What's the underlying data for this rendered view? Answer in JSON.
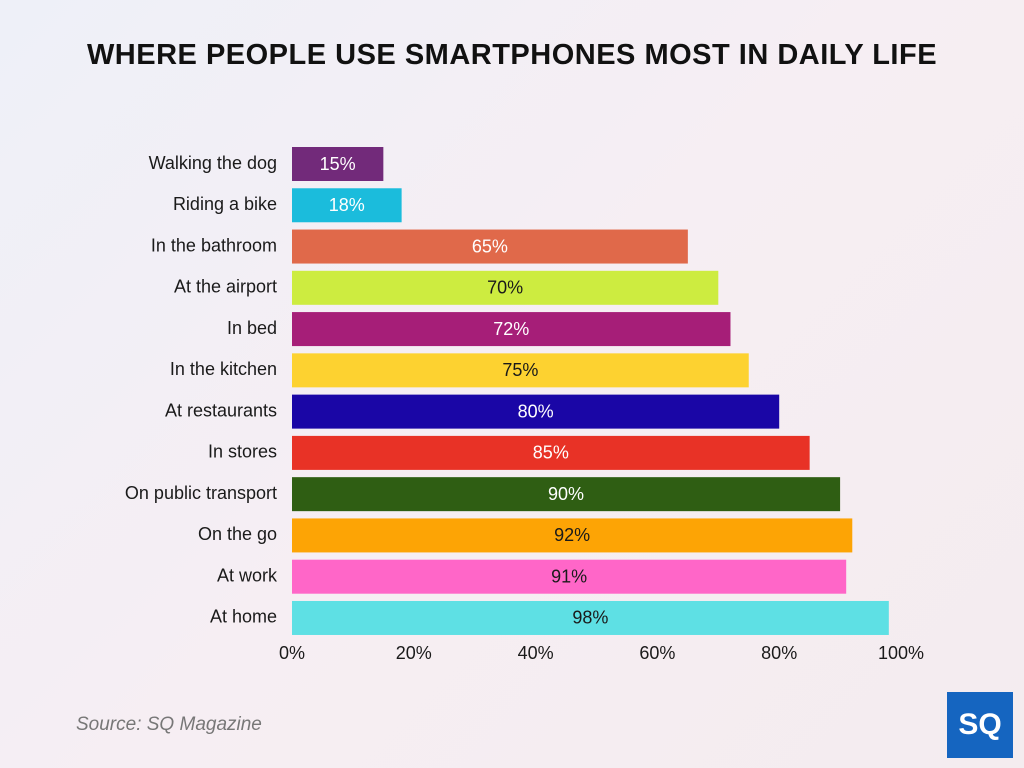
{
  "chart_data": {
    "type": "bar",
    "orientation": "horizontal",
    "title": "WHERE PEOPLE USE SMARTPHONES MOST IN DAILY LIFE",
    "categories": [
      "Walking the dog",
      "Riding a bike",
      "In the bathroom",
      "At the airport",
      "In bed",
      "In the kitchen",
      "At restaurants",
      "In stores",
      "On public transport",
      "On the go",
      "At work",
      "At home"
    ],
    "values": [
      15,
      18,
      65,
      70,
      72,
      75,
      80,
      85,
      90,
      92,
      91,
      98
    ],
    "value_labels": [
      "15%",
      "18%",
      "65%",
      "70%",
      "72%",
      "75%",
      "80%",
      "85%",
      "90%",
      "92%",
      "91%",
      "98%"
    ],
    "colors": [
      "#722a7a",
      "#1bbcdc",
      "#e0694a",
      "#cdec40",
      "#a61e78",
      "#fdd230",
      "#1a06a6",
      "#e83226",
      "#2f5e13",
      "#fda405",
      "#ff66c8",
      "#5ee0e4"
    ],
    "xlim": [
      0,
      100
    ],
    "xticks": [
      {
        "value": 0,
        "label": "0%"
      },
      {
        "value": 20,
        "label": "20%"
      },
      {
        "value": 40,
        "label": "40%"
      },
      {
        "value": 60,
        "label": "60%"
      },
      {
        "value": 80,
        "label": "80%"
      },
      {
        "value": 100,
        "label": "100%"
      }
    ],
    "source": "Source: SQ Magazine",
    "logo": "SQ"
  }
}
